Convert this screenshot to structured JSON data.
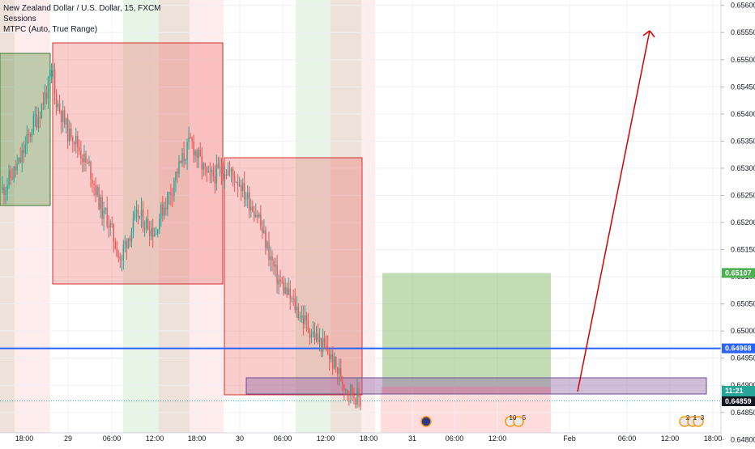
{
  "chart_data": {
    "type": "candlestick",
    "title": "New Zealand Dollar / U.S. Dollar, 15, FXCM",
    "indicators": [
      "Sessions",
      "MTPC (Auto, True Range)"
    ],
    "symbol": "NZDUSD",
    "timeframe": "15",
    "source": "FXCM",
    "y_ticks": [
      "0.65600",
      "0.65550",
      "0.65500",
      "0.65450",
      "0.65400",
      "0.65350",
      "0.65300",
      "0.65250",
      "0.65200",
      "0.65150",
      "0.65100",
      "0.65050",
      "0.65000",
      "0.64950",
      "0.64900",
      "0.64850",
      "0.64800"
    ],
    "ylim": [
      0.6479,
      0.6561
    ],
    "x_ticks": [
      "18:00",
      "29",
      "06:00",
      "12:00",
      "18:00",
      "30",
      "06:00",
      "12:00",
      "18:00",
      "31",
      "06:00",
      "12:00",
      "Feb",
      "06:00",
      "12:00",
      "18:00"
    ],
    "price_labels": {
      "target": "0.65107",
      "horizontal_line": "0.64968",
      "last_price": "0.64871",
      "countdown": "11:21",
      "low": "0.64859",
      "hidden": "0.6"
    },
    "horizontal_line_value": 0.64968,
    "target_value": 0.65107,
    "last_value": 0.64871,
    "low_value": 0.64859,
    "zone_top": 0.6488,
    "zone_bottom": 0.6485,
    "price_path": [
      [
        0.6526,
        0.6531
      ],
      [
        0.6531,
        0.654
      ],
      [
        0.6539,
        0.6548
      ],
      [
        0.6544,
        0.6535
      ],
      [
        0.6537,
        0.653
      ],
      [
        0.6531,
        0.652
      ],
      [
        0.6522,
        0.6512
      ],
      [
        0.6515,
        0.6522
      ],
      [
        0.6521,
        0.6518
      ],
      [
        0.652,
        0.6527
      ],
      [
        0.6528,
        0.6535
      ],
      [
        0.6535,
        0.6528
      ],
      [
        0.6528,
        0.653
      ],
      [
        0.653,
        0.6527
      ],
      [
        0.6526,
        0.6521
      ],
      [
        0.652,
        0.651
      ],
      [
        0.651,
        0.6505
      ],
      [
        0.6505,
        0.65
      ],
      [
        0.65,
        0.6496
      ],
      [
        0.6496,
        0.649
      ],
      [
        0.649,
        0.6487
      ]
    ],
    "day_markers": [
      "31",
      "Feb"
    ],
    "events": [
      {
        "label": "10",
        "extra": "5"
      },
      {
        "label": "2",
        "extra": "3"
      },
      {
        "label": "1",
        "extra": ""
      }
    ],
    "colors": {
      "up_candle": "#26a69a",
      "down_candle": "#ef5350",
      "horizontal_line": "#2962ff",
      "arrow": "#d50000",
      "target_badge": "#4caf50",
      "last_badge": "#26a69a",
      "price_badge": "#2962ff",
      "low_badge": "#131722"
    }
  }
}
